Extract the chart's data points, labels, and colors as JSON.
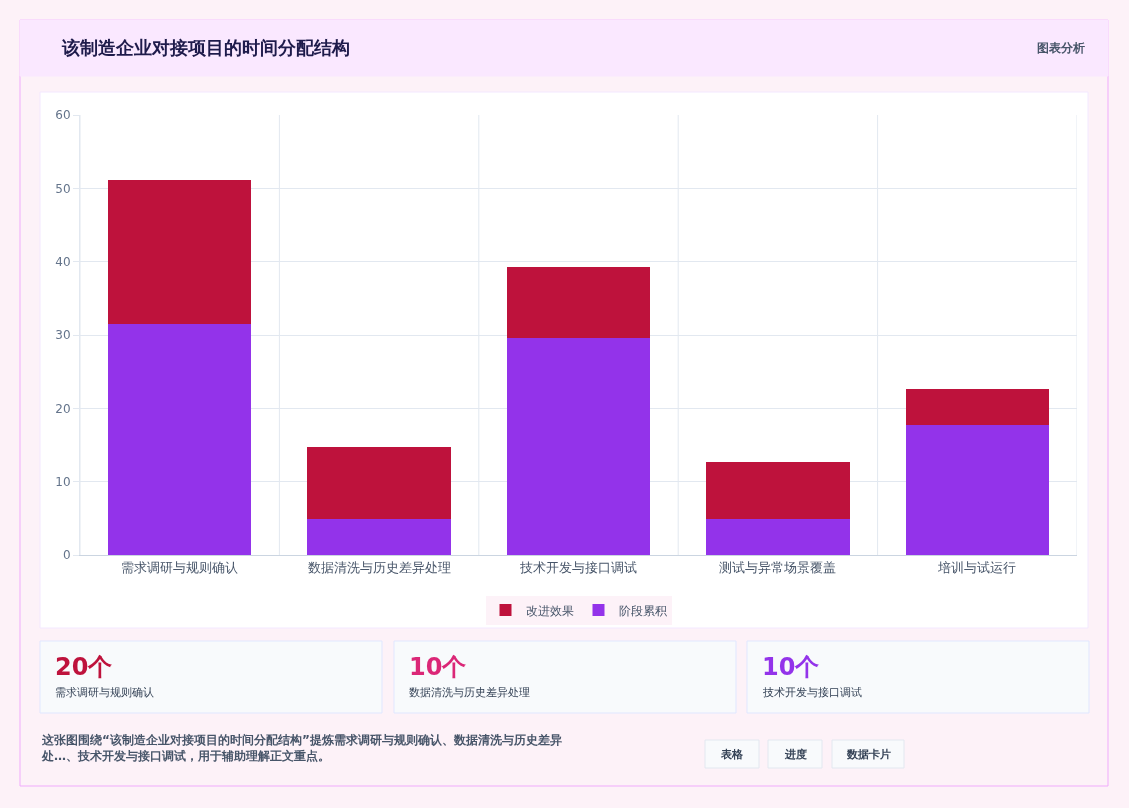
{
  "chart_data": {
    "type": "bar",
    "title": "该制造企业对接项目的时间分配结构",
    "stacked": true,
    "categories": [
      "需求调研与规则确认",
      "数据清洗与历史差异处理",
      "技术开发与接口调试",
      "测试与异常场景覆盖",
      "培训与试运行"
    ],
    "series": [
      {
        "name": "阶段累积",
        "color": "#9333ea",
        "values": [
          31.5,
          4.9,
          29.6,
          4.9,
          17.7
        ]
      },
      {
        "name": "改进效果",
        "color": "#be123c",
        "values": [
          19.7,
          9.8,
          9.7,
          7.8,
          4.9
        ]
      }
    ],
    "ylim": [
      0,
      60
    ],
    "yticks": [
      0,
      10,
      20,
      30,
      40,
      50,
      60
    ],
    "grid": true,
    "legend": "bottom",
    "annotations": [
      "图表分析",
      "20个",
      "需求调研与规则确认",
      "10个",
      "数据清洗与历史差异处理",
      "10个",
      "技术开发与接口调试",
      "这张图围绕“该制造企业对接项目的时间分配结构”提炼需求调研与规则确认、数据清洗与历史差异处…、技术开发与接口调试，用于辅助理解正文重点。",
      "表格",
      "进度",
      "数据卡片"
    ]
  }
}
